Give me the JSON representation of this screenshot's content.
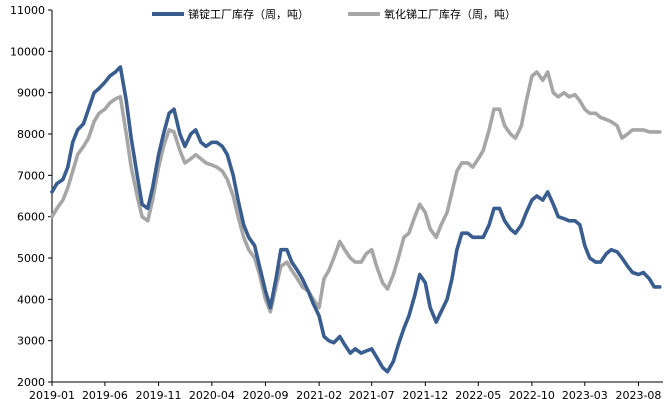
{
  "chart_data": {
    "type": "line",
    "title": "",
    "xlabel": "",
    "ylabel": "",
    "ylim": [
      2000,
      11000
    ],
    "yticks": [
      2000,
      3000,
      4000,
      5000,
      6000,
      7000,
      8000,
      9000,
      10000,
      11000
    ],
    "xticks": [
      "2019-01",
      "2019-06",
      "2019-11",
      "2020-04",
      "2020-09",
      "2021-02",
      "2021-07",
      "2021-12",
      "2022-05",
      "2022-10",
      "2023-03",
      "2023-08"
    ],
    "legend_position": "top-center",
    "grid": false,
    "series": [
      {
        "name": "锑锭工厂库存（周，吨）",
        "color": "#3a5d8f",
        "values": [
          [
            "2019-01",
            6600
          ],
          [
            "2019-01-15",
            6800
          ],
          [
            "2019-02",
            6900
          ],
          [
            "2019-02-15",
            7200
          ],
          [
            "2019-03",
            7800
          ],
          [
            "2019-03-15",
            8100
          ],
          [
            "2019-04",
            8250
          ],
          [
            "2019-04-15",
            8600
          ],
          [
            "2019-05",
            9000
          ],
          [
            "2019-05-15",
            9100
          ],
          [
            "2019-06",
            9250
          ],
          [
            "2019-06-15",
            9400
          ],
          [
            "2019-07",
            9500
          ],
          [
            "2019-07-15",
            9620
          ],
          [
            "2019-08",
            8800
          ],
          [
            "2019-08-15",
            7900
          ],
          [
            "2019-09",
            7000
          ],
          [
            "2019-09-15",
            6300
          ],
          [
            "2019-10",
            6200
          ],
          [
            "2019-10-15",
            6700
          ],
          [
            "2019-11",
            7500
          ],
          [
            "2019-11-15",
            8000
          ],
          [
            "2019-12",
            8500
          ],
          [
            "2019-12-15",
            8600
          ],
          [
            "2020-01",
            8000
          ],
          [
            "2020-01-15",
            7700
          ],
          [
            "2020-02",
            8000
          ],
          [
            "2020-02-15",
            8100
          ],
          [
            "2020-03",
            7800
          ],
          [
            "2020-03-15",
            7700
          ],
          [
            "2020-04",
            7800
          ],
          [
            "2020-04-15",
            7800
          ],
          [
            "2020-05",
            7700
          ],
          [
            "2020-05-15",
            7500
          ],
          [
            "2020-06",
            7000
          ],
          [
            "2020-06-15",
            6400
          ],
          [
            "2020-07",
            5800
          ],
          [
            "2020-07-15",
            5500
          ],
          [
            "2020-08",
            5300
          ],
          [
            "2020-08-15",
            4800
          ],
          [
            "2020-09",
            4200
          ],
          [
            "2020-09-15",
            3800
          ],
          [
            "2020-10",
            4500
          ],
          [
            "2020-10-15",
            5200
          ],
          [
            "2020-11",
            5200
          ],
          [
            "2020-11-15",
            4900
          ],
          [
            "2020-12",
            4700
          ],
          [
            "2020-12-15",
            4500
          ],
          [
            "2021-01",
            4200
          ],
          [
            "2021-01-15",
            3900
          ],
          [
            "2021-02",
            3600
          ],
          [
            "2021-02-15",
            3100
          ],
          [
            "2021-03",
            3000
          ],
          [
            "2021-03-15",
            2950
          ],
          [
            "2021-04",
            3100
          ],
          [
            "2021-04-15",
            2900
          ],
          [
            "2021-05",
            2700
          ],
          [
            "2021-05-15",
            2800
          ],
          [
            "2021-06",
            2700
          ],
          [
            "2021-06-15",
            2750
          ],
          [
            "2021-07",
            2800
          ],
          [
            "2021-07-15",
            2600
          ],
          [
            "2021-08",
            2350
          ],
          [
            "2021-08-15",
            2250
          ],
          [
            "2021-09",
            2500
          ],
          [
            "2021-09-15",
            2900
          ],
          [
            "2021-10",
            3300
          ],
          [
            "2021-10-15",
            3600
          ],
          [
            "2021-11",
            4100
          ],
          [
            "2021-11-15",
            4600
          ],
          [
            "2021-12",
            4400
          ],
          [
            "2021-12-15",
            3800
          ],
          [
            "2022-01",
            3450
          ],
          [
            "2022-01-15",
            3700
          ],
          [
            "2022-02",
            4000
          ],
          [
            "2022-02-15",
            4500
          ],
          [
            "2022-03",
            5200
          ],
          [
            "2022-03-15",
            5600
          ],
          [
            "2022-04",
            5600
          ],
          [
            "2022-04-15",
            5500
          ],
          [
            "2022-05",
            5500
          ],
          [
            "2022-05-15",
            5500
          ],
          [
            "2022-06",
            5800
          ],
          [
            "2022-06-15",
            6200
          ],
          [
            "2022-07",
            6200
          ],
          [
            "2022-07-15",
            5900
          ],
          [
            "2022-08",
            5700
          ],
          [
            "2022-08-15",
            5600
          ],
          [
            "2022-09",
            5800
          ],
          [
            "2022-09-15",
            6100
          ],
          [
            "2022-10",
            6400
          ],
          [
            "2022-10-15",
            6500
          ],
          [
            "2022-11",
            6400
          ],
          [
            "2022-11-15",
            6600
          ],
          [
            "2022-12",
            6300
          ],
          [
            "2022-12-15",
            6000
          ],
          [
            "2023-01",
            5950
          ],
          [
            "2023-01-15",
            5900
          ],
          [
            "2023-02",
            5900
          ],
          [
            "2023-02-15",
            5800
          ],
          [
            "2023-03",
            5300
          ],
          [
            "2023-03-15",
            5000
          ],
          [
            "2023-04",
            4900
          ],
          [
            "2023-04-15",
            4900
          ],
          [
            "2023-05",
            5100
          ],
          [
            "2023-05-15",
            5200
          ],
          [
            "2023-06",
            5150
          ],
          [
            "2023-06-15",
            5000
          ],
          [
            "2023-07",
            4800
          ],
          [
            "2023-07-15",
            4650
          ],
          [
            "2023-08",
            4600
          ],
          [
            "2023-08-15",
            4650
          ],
          [
            "2023-09",
            4500
          ],
          [
            "2023-09-15",
            4300
          ],
          [
            "2023-10",
            4300
          ]
        ]
      },
      {
        "name": "氧化锑工厂库存（周，吨）",
        "color": "#a6a6a6",
        "values": [
          [
            "2019-01",
            6000
          ],
          [
            "2019-01-15",
            6200
          ],
          [
            "2019-02",
            6400
          ],
          [
            "2019-02-15",
            6700
          ],
          [
            "2019-03",
            7100
          ],
          [
            "2019-03-15",
            7500
          ],
          [
            "2019-04",
            7700
          ],
          [
            "2019-04-15",
            7900
          ],
          [
            "2019-05",
            8300
          ],
          [
            "2019-05-15",
            8500
          ],
          [
            "2019-06",
            8600
          ],
          [
            "2019-06-15",
            8750
          ],
          [
            "2019-07",
            8850
          ],
          [
            "2019-07-15",
            8900
          ],
          [
            "2019-08",
            8000
          ],
          [
            "2019-08-15",
            7200
          ],
          [
            "2019-09",
            6500
          ],
          [
            "2019-09-15",
            6000
          ],
          [
            "2019-10",
            5900
          ],
          [
            "2019-10-15",
            6400
          ],
          [
            "2019-11",
            7200
          ],
          [
            "2019-11-15",
            7700
          ],
          [
            "2019-12",
            8100
          ],
          [
            "2019-12-15",
            8050
          ],
          [
            "2020-01",
            7600
          ],
          [
            "2020-01-15",
            7300
          ],
          [
            "2020-02",
            7400
          ],
          [
            "2020-02-15",
            7500
          ],
          [
            "2020-03",
            7400
          ],
          [
            "2020-03-15",
            7300
          ],
          [
            "2020-04",
            7250
          ],
          [
            "2020-04-15",
            7200
          ],
          [
            "2020-05",
            7100
          ],
          [
            "2020-05-15",
            6900
          ],
          [
            "2020-06",
            6500
          ],
          [
            "2020-06-15",
            6000
          ],
          [
            "2020-07",
            5500
          ],
          [
            "2020-07-15",
            5200
          ],
          [
            "2020-08",
            5000
          ],
          [
            "2020-08-15",
            4600
          ],
          [
            "2020-09",
            4000
          ],
          [
            "2020-09-15",
            3700
          ],
          [
            "2020-10",
            4300
          ],
          [
            "2020-10-15",
            4800
          ],
          [
            "2020-11",
            4900
          ],
          [
            "2020-11-15",
            4700
          ],
          [
            "2020-12",
            4500
          ],
          [
            "2020-12-15",
            4300
          ],
          [
            "2021-01",
            4200
          ],
          [
            "2021-01-15",
            4000
          ],
          [
            "2021-02",
            3800
          ],
          [
            "2021-02-15",
            4500
          ],
          [
            "2021-03",
            4700
          ],
          [
            "2021-03-15",
            5000
          ],
          [
            "2021-04",
            5400
          ],
          [
            "2021-04-15",
            5200
          ],
          [
            "2021-05",
            5000
          ],
          [
            "2021-05-15",
            4900
          ],
          [
            "2021-06",
            4900
          ],
          [
            "2021-06-15",
            5100
          ],
          [
            "2021-07",
            5200
          ],
          [
            "2021-07-15",
            4800
          ],
          [
            "2021-08",
            4400
          ],
          [
            "2021-08-15",
            4250
          ],
          [
            "2021-09",
            4600
          ],
          [
            "2021-09-15",
            5000
          ],
          [
            "2021-10",
            5500
          ],
          [
            "2021-10-15",
            5600
          ],
          [
            "2021-11",
            6000
          ],
          [
            "2021-11-15",
            6300
          ],
          [
            "2021-12",
            6100
          ],
          [
            "2021-12-15",
            5700
          ],
          [
            "2022-01",
            5500
          ],
          [
            "2022-01-15",
            5800
          ],
          [
            "2022-02",
            6100
          ],
          [
            "2022-02-15",
            6600
          ],
          [
            "2022-03",
            7100
          ],
          [
            "2022-03-15",
            7300
          ],
          [
            "2022-04",
            7300
          ],
          [
            "2022-04-15",
            7200
          ],
          [
            "2022-05",
            7400
          ],
          [
            "2022-05-15",
            7600
          ],
          [
            "2022-06",
            8100
          ],
          [
            "2022-06-15",
            8600
          ],
          [
            "2022-07",
            8600
          ],
          [
            "2022-07-15",
            8200
          ],
          [
            "2022-08",
            8000
          ],
          [
            "2022-08-15",
            7900
          ],
          [
            "2022-09",
            8200
          ],
          [
            "2022-09-15",
            8800
          ],
          [
            "2022-10",
            9400
          ],
          [
            "2022-10-15",
            9500
          ],
          [
            "2022-11",
            9300
          ],
          [
            "2022-11-15",
            9500
          ],
          [
            "2022-12",
            9000
          ],
          [
            "2022-12-15",
            8900
          ],
          [
            "2023-01",
            9000
          ],
          [
            "2023-01-15",
            8900
          ],
          [
            "2023-02",
            8950
          ],
          [
            "2023-02-15",
            8800
          ],
          [
            "2023-03",
            8600
          ],
          [
            "2023-03-15",
            8500
          ],
          [
            "2023-04",
            8500
          ],
          [
            "2023-04-15",
            8400
          ],
          [
            "2023-05",
            8350
          ],
          [
            "2023-05-15",
            8300
          ],
          [
            "2023-06",
            8200
          ],
          [
            "2023-06-15",
            7900
          ],
          [
            "2023-07",
            8000
          ],
          [
            "2023-07-15",
            8100
          ],
          [
            "2023-08",
            8100
          ],
          [
            "2023-08-15",
            8100
          ],
          [
            "2023-09",
            8050
          ],
          [
            "2023-09-15",
            8050
          ],
          [
            "2023-10",
            8050
          ]
        ]
      }
    ]
  }
}
